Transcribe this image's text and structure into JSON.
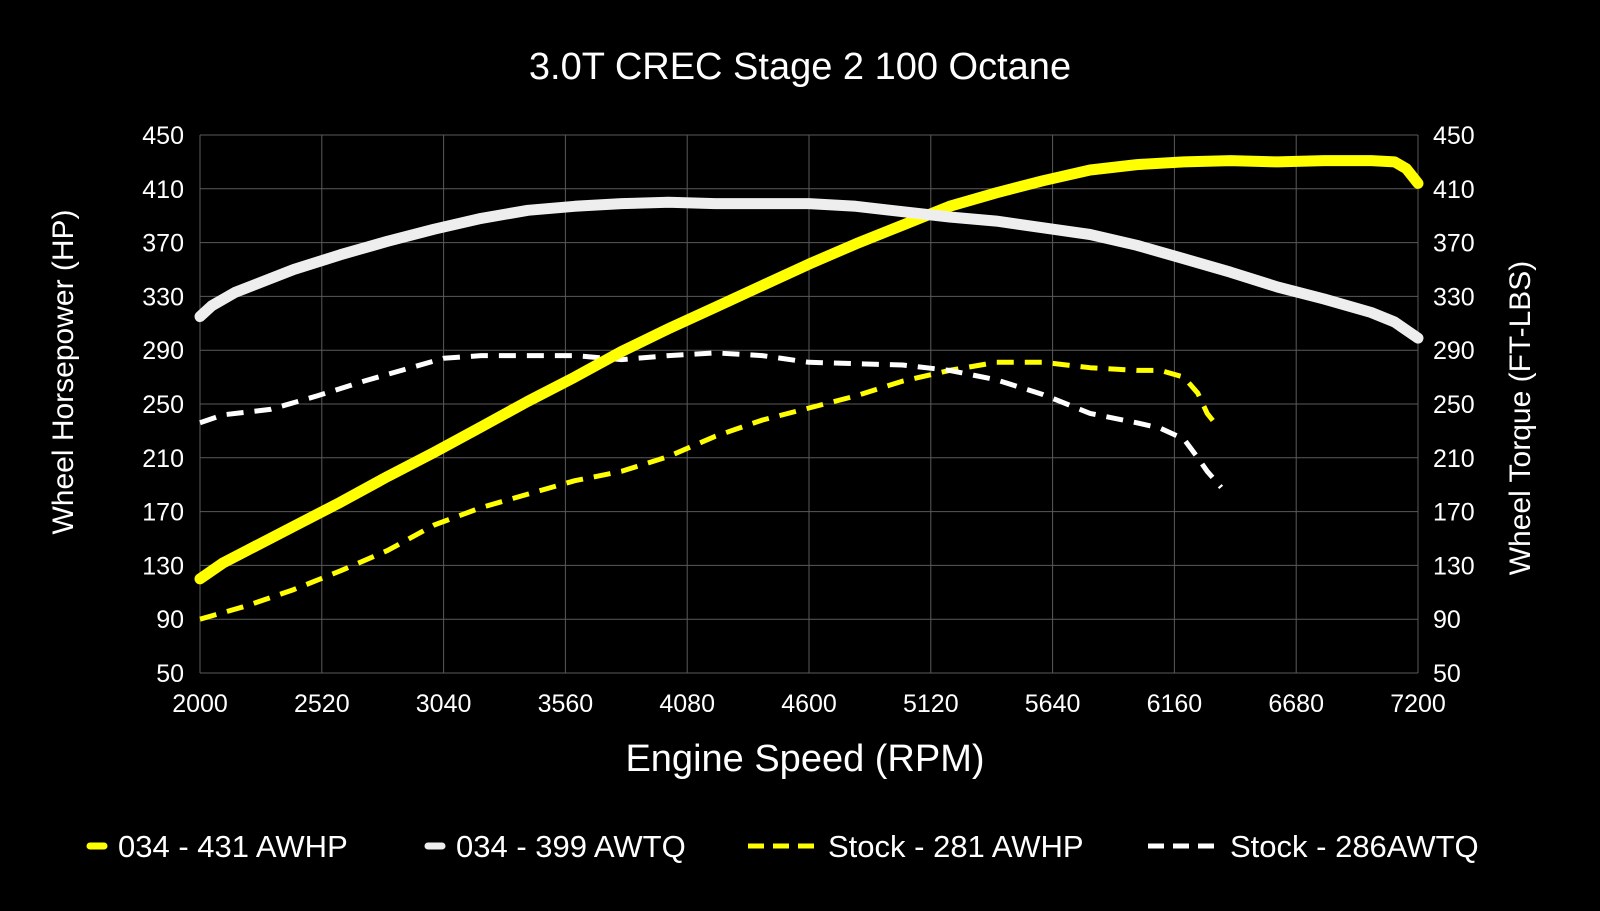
{
  "chart_data": {
    "type": "line",
    "title": "3.0T CREC Stage 2 100 Octane",
    "xlabel": "Engine Speed (RPM)",
    "ylabel_left": "Wheel Horsepower (HP)",
    "ylabel_right": "Wheel Torque (FT-LBS)",
    "xlim": [
      2000,
      7200
    ],
    "ylim": [
      50,
      450
    ],
    "x_ticks": [
      "2000",
      "2520",
      "3040",
      "3560",
      "4080",
      "4600",
      "5120",
      "5640",
      "6160",
      "6680",
      "7200"
    ],
    "y_ticks": [
      "50",
      "90",
      "130",
      "170",
      "210",
      "250",
      "290",
      "330",
      "370",
      "410",
      "450"
    ],
    "grid": true,
    "legend_position": "bottom",
    "series": [
      {
        "name": "034 - 431 AWHP",
        "color": "#ffff00",
        "style": "solid",
        "x": [
          2000,
          2100,
          2200,
          2400,
          2600,
          2800,
          3000,
          3200,
          3400,
          3600,
          3800,
          4000,
          4200,
          4400,
          4600,
          4800,
          5000,
          5200,
          5400,
          5600,
          5800,
          6000,
          6200,
          6400,
          6600,
          6800,
          7000,
          7100,
          7150,
          7200
        ],
        "y": [
          120,
          132,
          141,
          159,
          177,
          196,
          214,
          233,
          252,
          270,
          289,
          306,
          322,
          338,
          354,
          369,
          383,
          397,
          407,
          416,
          424,
          428,
          430,
          431,
          430,
          431,
          431,
          430,
          425,
          414
        ]
      },
      {
        "name": "034 - 399 AWTQ",
        "color": "#eeeeee",
        "style": "solid",
        "x": [
          2000,
          2050,
          2150,
          2400,
          2600,
          2800,
          3000,
          3200,
          3400,
          3600,
          3800,
          4000,
          4200,
          4400,
          4600,
          4800,
          5000,
          5200,
          5400,
          5600,
          5800,
          6000,
          6200,
          6400,
          6600,
          6800,
          7000,
          7100,
          7200
        ],
        "y": [
          315,
          323,
          333,
          350,
          361,
          371,
          380,
          388,
          394,
          397,
          399,
          400,
          399,
          399,
          399,
          397,
          393,
          389,
          386,
          381,
          376,
          368,
          358,
          348,
          337,
          328,
          318,
          311,
          299
        ]
      },
      {
        "name": "Stock - 281 AWHP",
        "color": "#ffff00",
        "style": "dashed",
        "x": [
          2000,
          2200,
          2400,
          2600,
          2800,
          3000,
          3200,
          3400,
          3600,
          3800,
          4000,
          4200,
          4400,
          4600,
          4800,
          5000,
          5200,
          5400,
          5600,
          5800,
          6000,
          6100,
          6200,
          6260,
          6300,
          6350
        ],
        "y": [
          90,
          100,
          112,
          126,
          141,
          160,
          173,
          183,
          193,
          200,
          211,
          226,
          238,
          247,
          256,
          267,
          275,
          281,
          281,
          277,
          275,
          275,
          270,
          258,
          243,
          232
        ]
      },
      {
        "name": "Stock - 286AWTQ",
        "color": "#ffffff",
        "style": "dashed",
        "x": [
          2000,
          2100,
          2300,
          2500,
          2700,
          2900,
          3040,
          3200,
          3400,
          3600,
          3800,
          4000,
          4200,
          4400,
          4600,
          4800,
          5000,
          5200,
          5400,
          5600,
          5800,
          6000,
          6100,
          6200,
          6260,
          6300,
          6360
        ],
        "y": [
          236,
          242,
          246,
          256,
          267,
          277,
          284,
          286,
          286,
          286,
          283,
          286,
          288,
          286,
          281,
          280,
          279,
          275,
          268,
          257,
          243,
          236,
          232,
          224,
          210,
          200,
          188
        ]
      }
    ]
  }
}
